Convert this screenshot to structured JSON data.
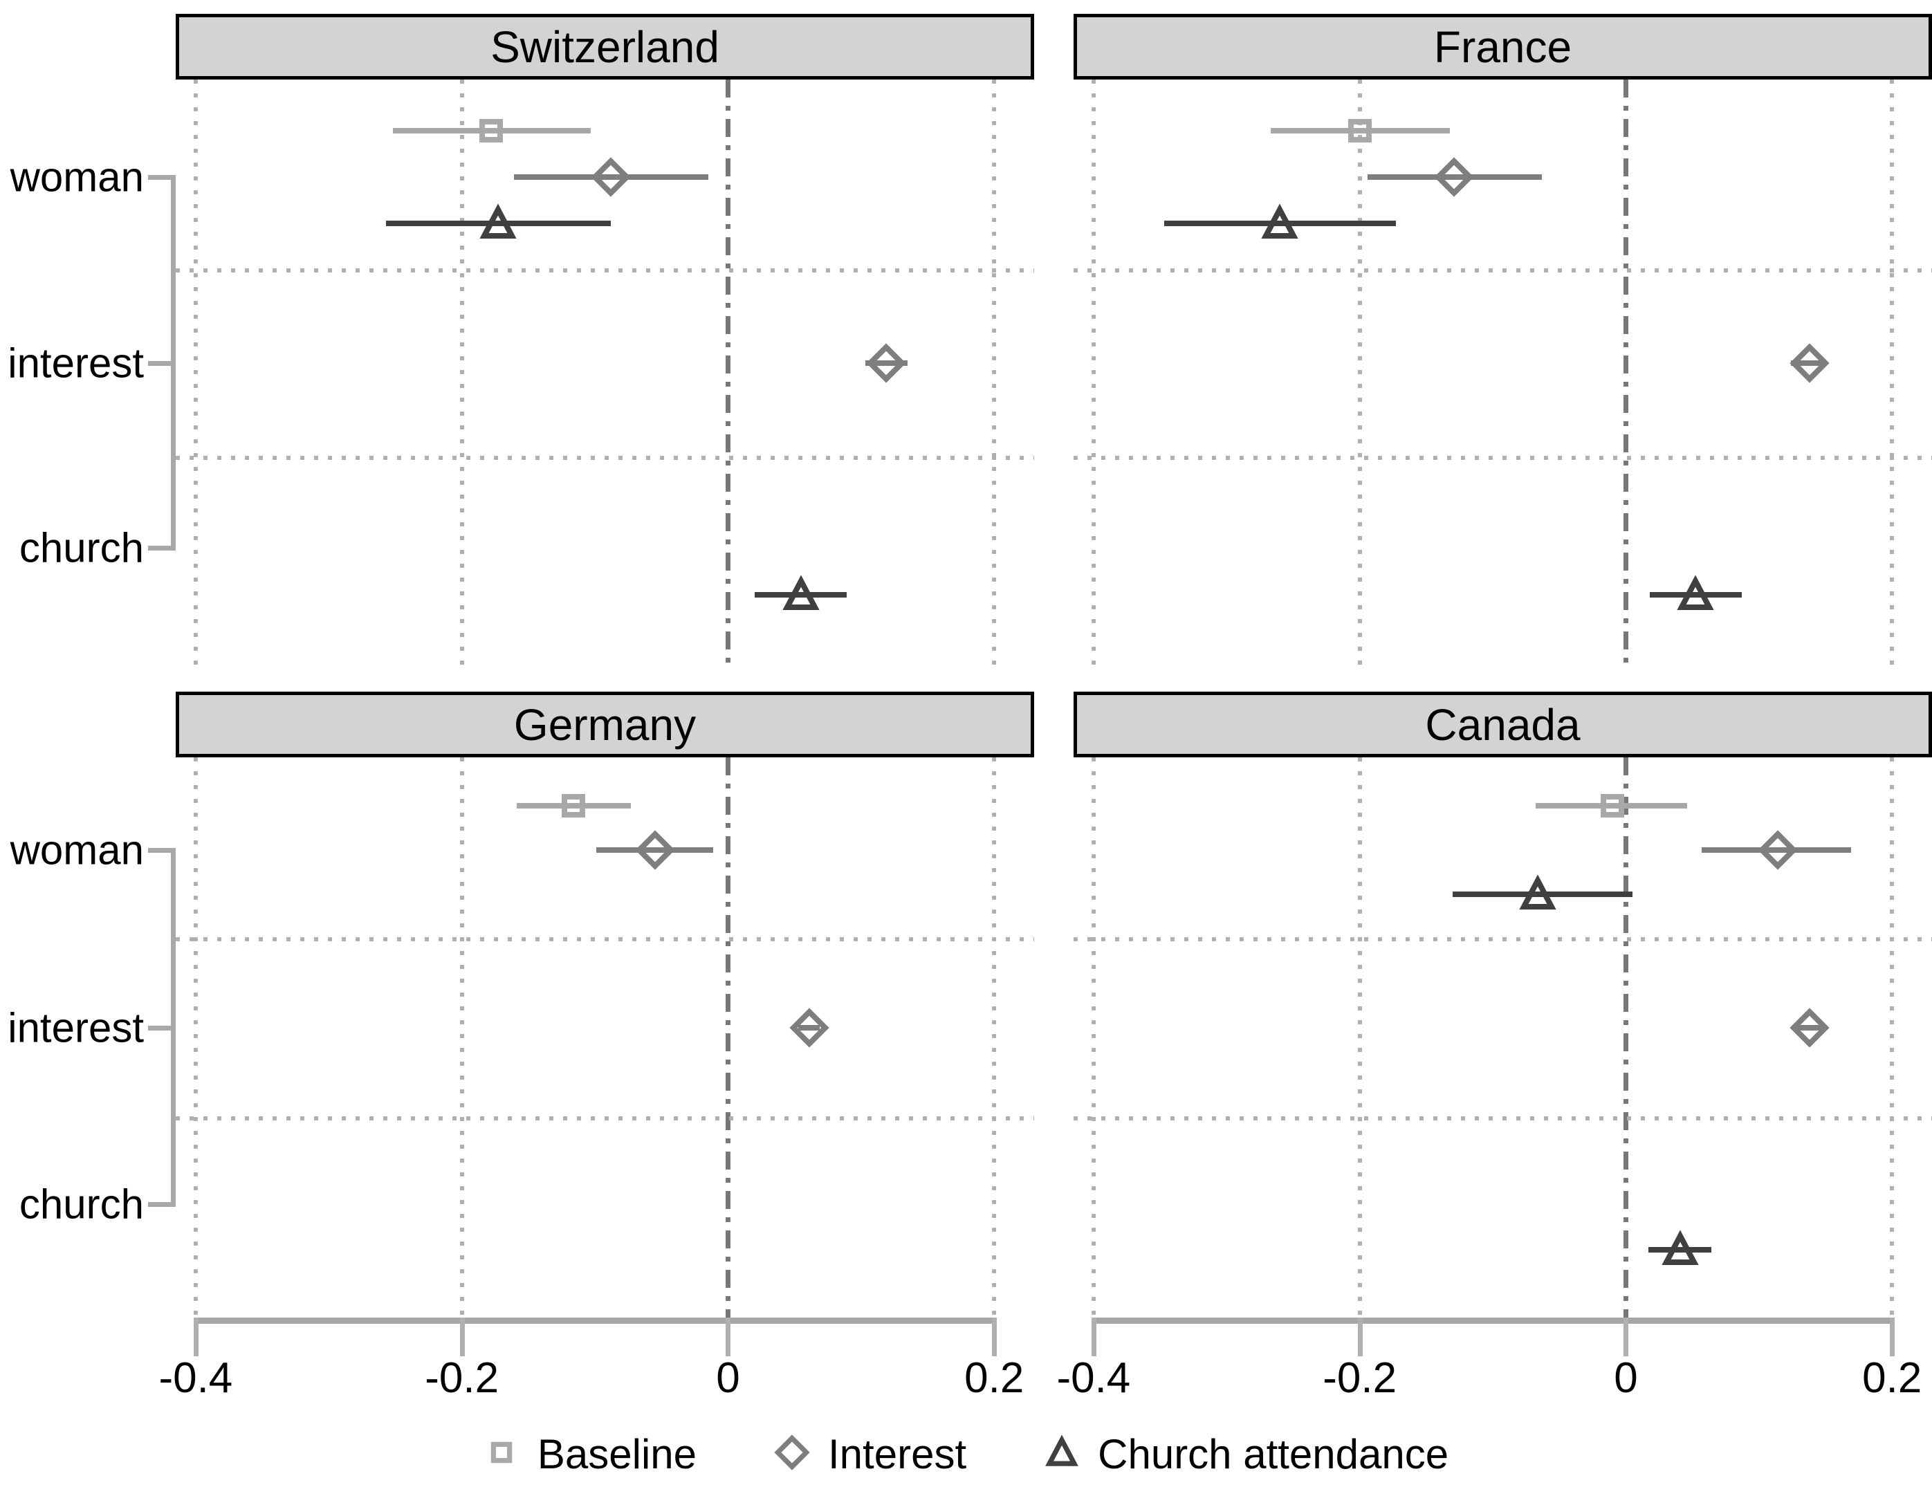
{
  "row_labels": [
    "woman",
    "interest",
    "church"
  ],
  "x_axis": {
    "tick_labels": [
      "-0.4",
      "-0.2",
      "0",
      "0.2"
    ],
    "tick_values": [
      -0.4,
      -0.2,
      0,
      0.2
    ]
  },
  "legend": [
    {
      "model": "baseline",
      "label": "Baseline",
      "marker": "square",
      "color": "#a8a8a8"
    },
    {
      "model": "interest",
      "label": "Interest",
      "marker": "diamond",
      "color": "#7e7e7e"
    },
    {
      "model": "church",
      "label": "Church attendance",
      "marker": "triangle",
      "color": "#404040"
    }
  ],
  "styles": {
    "panel_title_bg": "#d3d3d3",
    "panel_title_border": "#000000",
    "grid_color": "#b0b0b0",
    "zero_line_color": "#777777",
    "axis_color": "#a6a6a6",
    "bracket_color": "#a8a8a8",
    "text_color": "#000000"
  },
  "chart_data": {
    "type": "scatter",
    "variant": "coefficient-dot-whisker-small-multiples",
    "xlabel": "",
    "ylabel": "",
    "xlim": [
      -0.415,
      0.23
    ],
    "zero_line": 0,
    "grid": "dotted",
    "legend_position": "bottom",
    "panels": [
      {
        "title": "Switzerland",
        "points": [
          {
            "row": "woman",
            "model": "baseline",
            "estimate": -0.178,
            "ci": [
              -0.252,
              -0.103
            ]
          },
          {
            "row": "woman",
            "model": "interest",
            "estimate": -0.088,
            "ci": [
              -0.161,
              -0.015
            ]
          },
          {
            "row": "woman",
            "model": "church",
            "estimate": -0.173,
            "ci": [
              -0.257,
              -0.088
            ]
          },
          {
            "row": "interest",
            "model": "interest",
            "estimate": 0.119,
            "ci": [
              0.103,
              0.135
            ]
          },
          {
            "row": "church",
            "model": "church",
            "estimate": 0.055,
            "ci": [
              0.02,
              0.089
            ]
          }
        ]
      },
      {
        "title": "France",
        "points": [
          {
            "row": "woman",
            "model": "baseline",
            "estimate": -0.2,
            "ci": [
              -0.267,
              -0.132
            ]
          },
          {
            "row": "woman",
            "model": "interest",
            "estimate": -0.129,
            "ci": [
              -0.194,
              -0.063
            ]
          },
          {
            "row": "woman",
            "model": "church",
            "estimate": -0.26,
            "ci": [
              -0.347,
              -0.173
            ]
          },
          {
            "row": "interest",
            "model": "interest",
            "estimate": 0.138,
            "ci": [
              0.124,
              0.15
            ]
          },
          {
            "row": "church",
            "model": "church",
            "estimate": 0.052,
            "ci": [
              0.018,
              0.087
            ]
          }
        ]
      },
      {
        "title": "Germany",
        "points": [
          {
            "row": "woman",
            "model": "baseline",
            "estimate": -0.116,
            "ci": [
              -0.159,
              -0.073
            ]
          },
          {
            "row": "woman",
            "model": "interest",
            "estimate": -0.055,
            "ci": [
              -0.099,
              -0.011
            ]
          },
          {
            "row": "interest",
            "model": "interest",
            "estimate": 0.061,
            "ci": [
              0.053,
              0.069
            ]
          }
        ]
      },
      {
        "title": "Canada",
        "points": [
          {
            "row": "woman",
            "model": "baseline",
            "estimate": -0.01,
            "ci": [
              -0.068,
              0.046
            ]
          },
          {
            "row": "woman",
            "model": "interest",
            "estimate": 0.114,
            "ci": [
              0.057,
              0.169
            ]
          },
          {
            "row": "woman",
            "model": "church",
            "estimate": -0.066,
            "ci": [
              -0.13,
              0.005
            ]
          },
          {
            "row": "interest",
            "model": "interest",
            "estimate": 0.138,
            "ci": [
              0.128,
              0.148
            ]
          },
          {
            "row": "church",
            "model": "church",
            "estimate": 0.041,
            "ci": [
              0.017,
              0.064
            ]
          }
        ]
      }
    ]
  }
}
